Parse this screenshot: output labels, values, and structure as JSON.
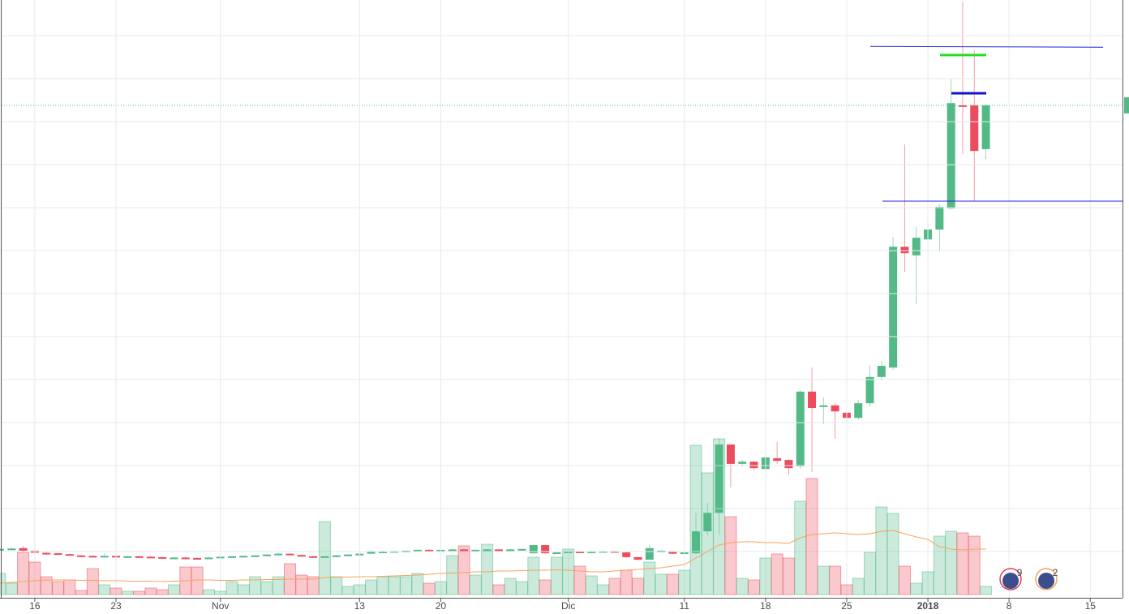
{
  "chart_data": {
    "type": "candlestick",
    "x": [
      -3,
      -2,
      -1,
      0,
      1,
      2,
      3,
      4,
      5,
      6,
      7,
      8,
      9,
      10,
      11,
      12,
      13,
      14,
      15,
      16,
      17,
      18,
      19,
      20,
      21,
      22,
      23,
      24,
      25,
      26,
      27,
      28,
      29,
      30,
      31,
      32,
      33,
      34,
      35,
      36,
      37,
      38,
      39,
      40,
      41,
      42,
      43,
      44,
      45,
      46,
      47,
      48,
      49,
      50,
      51,
      52,
      53,
      54,
      55,
      56,
      57,
      58,
      59,
      60,
      61,
      62,
      63,
      64,
      65,
      66,
      67,
      68,
      69,
      70,
      71,
      72,
      73,
      74,
      75,
      76,
      77,
      78,
      79,
      80,
      81,
      82
    ],
    "open": [
      1.04,
      1.06,
      1.08,
      1.02,
      0.97,
      0.96,
      0.94,
      0.91,
      0.9,
      0.88,
      0.9,
      0.89,
      0.89,
      0.88,
      0.87,
      0.86,
      0.86,
      0.85,
      0.84,
      0.86,
      0.88,
      0.89,
      0.9,
      0.91,
      0.93,
      0.95,
      0.92,
      0.89,
      0.87,
      0.89,
      0.91,
      0.93,
      0.95,
      1.0,
      1.0,
      1.01,
      1.02,
      1.04,
      1.02,
      1.04,
      1.05,
      1.03,
      1.04,
      1.05,
      1.04,
      1.05,
      0.96,
      1.15,
      0.96,
      0.98,
      1.0,
      0.99,
      1.0,
      1.01,
      0.98,
      0.87,
      0.81,
      1.0,
      1.0,
      0.95,
      0.96,
      1.47,
      1.9,
      3.49,
      3.04,
      3.09,
      2.92,
      3.17,
      3.13,
      2.98,
      4.72,
      4.4,
      4.4,
      4.23,
      4.11,
      4.45,
      5.06,
      5.28,
      8.09,
      7.89,
      8.26,
      8.49,
      8.98,
      11.38,
      11.38,
      10.36
    ],
    "high": [
      1.08,
      1.09,
      1.13,
      1.03,
      0.99,
      0.97,
      0.95,
      0.93,
      0.91,
      0.96,
      0.91,
      0.9,
      0.9,
      0.89,
      0.88,
      0.87,
      0.87,
      0.86,
      0.88,
      0.9,
      0.91,
      0.91,
      0.92,
      0.94,
      0.97,
      0.96,
      0.93,
      0.9,
      0.9,
      0.92,
      0.94,
      0.96,
      1.03,
      1.02,
      1.02,
      1.03,
      1.05,
      1.05,
      1.06,
      1.06,
      1.06,
      1.05,
      1.06,
      1.06,
      1.07,
      1.07,
      1.16,
      1.16,
      1.0,
      1.01,
      1.01,
      1.01,
      1.02,
      1.02,
      0.99,
      0.88,
      1.15,
      1.04,
      1.01,
      1.0,
      1.9,
      2.13,
      3.62,
      3.49,
      3.13,
      3.11,
      3.26,
      3.55,
      3.15,
      4.76,
      5.28,
      4.59,
      4.46,
      4.25,
      4.53,
      5.34,
      5.43,
      8.32,
      10.47,
      8.55,
      8.77,
      9.08,
      12.0,
      13.79,
      12.66,
      11.42
    ],
    "low": [
      1.02,
      1.04,
      1.0,
      0.95,
      0.94,
      0.92,
      0.9,
      0.89,
      0.87,
      0.87,
      0.88,
      0.88,
      0.87,
      0.86,
      0.85,
      0.85,
      0.84,
      0.83,
      0.83,
      0.85,
      0.87,
      0.88,
      0.89,
      0.9,
      0.92,
      0.91,
      0.88,
      0.86,
      0.86,
      0.88,
      0.9,
      0.92,
      0.94,
      0.98,
      0.99,
      1.0,
      1.01,
      1.0,
      1.01,
      1.03,
      1.02,
      1.02,
      1.03,
      1.03,
      1.03,
      1.04,
      0.95,
      0.94,
      0.95,
      0.97,
      0.98,
      0.98,
      0.99,
      0.99,
      0.85,
      0.79,
      0.8,
      0.99,
      0.94,
      0.94,
      0.94,
      1.38,
      1.38,
      2.49,
      2.98,
      2.9,
      2.85,
      3.04,
      2.79,
      2.92,
      2.85,
      3.96,
      3.62,
      3.98,
      4.06,
      4.38,
      4.98,
      5.23,
      7.51,
      6.75,
      8.17,
      7.98,
      8.96,
      10.25,
      9.15,
      10.13
    ],
    "close": [
      1.06,
      1.07,
      1.02,
      0.97,
      0.96,
      0.94,
      0.91,
      0.9,
      0.88,
      0.9,
      0.89,
      0.89,
      0.88,
      0.87,
      0.86,
      0.86,
      0.85,
      0.84,
      0.86,
      0.88,
      0.89,
      0.9,
      0.91,
      0.93,
      0.95,
      0.92,
      0.89,
      0.87,
      0.89,
      0.91,
      0.93,
      0.95,
      1.0,
      1.0,
      1.01,
      1.02,
      1.04,
      1.02,
      1.04,
      1.05,
      1.03,
      1.04,
      1.05,
      1.04,
      1.05,
      1.06,
      1.15,
      0.96,
      0.98,
      1.0,
      0.99,
      1.0,
      1.01,
      1.0,
      0.87,
      0.81,
      1.08,
      1.02,
      0.95,
      0.98,
      1.47,
      1.9,
      3.49,
      3.04,
      3.09,
      2.94,
      3.19,
      3.11,
      2.94,
      4.72,
      4.34,
      4.4,
      4.26,
      4.11,
      4.45,
      5.06,
      5.32,
      8.09,
      7.94,
      8.3,
      8.49,
      9.02,
      11.43,
      11.36,
      10.32,
      11.38
    ],
    "volume": [
      10.4,
      5.6,
      20.8,
      16,
      8.8,
      6.4,
      7.2,
      2,
      12.8,
      4.8,
      3.2,
      1.6,
      1.6,
      3.2,
      2.4,
      4.8,
      13.6,
      13.6,
      2.4,
      1.6,
      6.4,
      4.8,
      8.8,
      6.4,
      8.8,
      15.2,
      9.6,
      8.8,
      36,
      8.8,
      4,
      4.8,
      7.2,
      8.8,
      8.8,
      8.8,
      10.4,
      5.6,
      6.4,
      19.2,
      24,
      9.6,
      24.8,
      4.8,
      8,
      6.4,
      18.4,
      7.2,
      18.4,
      22.4,
      14,
      9.2,
      4.8,
      8,
      12,
      8,
      16,
      10,
      10,
      12,
      73.6,
      60,
      76.8,
      38.4,
      8,
      7.2,
      18,
      20,
      18,
      46,
      57.2,
      14,
      14,
      4.8,
      8,
      20.8,
      43.2,
      40,
      14,
      5.6,
      11.2,
      28.8,
      31.2,
      30.4,
      28.8,
      4
    ],
    "volume_ma": [
      5.6,
      6.0,
      6.4,
      6.8,
      7.2,
      7.2,
      7.2,
      7.0,
      7.0,
      6.8,
      6.8,
      6.6,
      6.6,
      6.6,
      6.4,
      6.6,
      6.8,
      7.2,
      7.2,
      7.0,
      7.0,
      7.2,
      7.2,
      7.4,
      7.4,
      7.6,
      7.6,
      7.6,
      8.4,
      8.6,
      8.6,
      8.8,
      8.8,
      9.0,
      9.2,
      9.4,
      9.6,
      10.0,
      10.4,
      10.6,
      10.8,
      11.2,
      11.2,
      11.6,
      11.6,
      11.8,
      12.0,
      12.0,
      12.2,
      12.0,
      11.6,
      11.2,
      11.2,
      11.6,
      12.0,
      12.4,
      12.8,
      13.2,
      14.0,
      14.8,
      18.0,
      21.2,
      24.4,
      25.6,
      26.0,
      26.0,
      25.6,
      25.6,
      25.2,
      28.0,
      29.6,
      30.0,
      30.4,
      30.0,
      29.6,
      30.0,
      31.2,
      31.6,
      30.0,
      28.4,
      27.2,
      23.6,
      22.4,
      22.0,
      22.4,
      22.4
    ],
    "xlim": [
      -3,
      93.5
    ],
    "xticks": [
      {
        "value": 0,
        "label": "16"
      },
      {
        "value": 7,
        "label": "23"
      },
      {
        "value": 16,
        "label": "Nov"
      },
      {
        "value": 28,
        "label": "13"
      },
      {
        "value": 35,
        "label": "20"
      },
      {
        "value": 46,
        "label": "Dic"
      },
      {
        "value": 56,
        "label": "11"
      },
      {
        "value": 63,
        "label": "18"
      },
      {
        "value": 70,
        "label": "25"
      },
      {
        "value": 77,
        "label": "2018"
      },
      {
        "value": 84,
        "label": "8"
      },
      {
        "value": 91,
        "label": "15"
      }
    ],
    "ylim": [
      0,
      13.83
    ],
    "yticks": [
      1,
      2,
      3,
      4,
      5,
      6,
      7,
      8,
      9,
      10,
      11,
      12,
      13
    ],
    "vlim": [
      0,
      100
    ],
    "grid": true,
    "colors": {
      "up": "#53b987",
      "down": "#eb4d5c",
      "ma": "#f7a35c"
    },
    "hlines": [
      {
        "value": 12.75,
        "color": "#2222dd"
      },
      {
        "value": 12.55,
        "color": "#22dd22"
      },
      {
        "value": 11.66,
        "color": "#1111cc"
      },
      {
        "value": 9.15,
        "color": "#2222dd"
      }
    ],
    "events": [
      {
        "label": "9"
      },
      {
        "label": "2"
      }
    ]
  }
}
